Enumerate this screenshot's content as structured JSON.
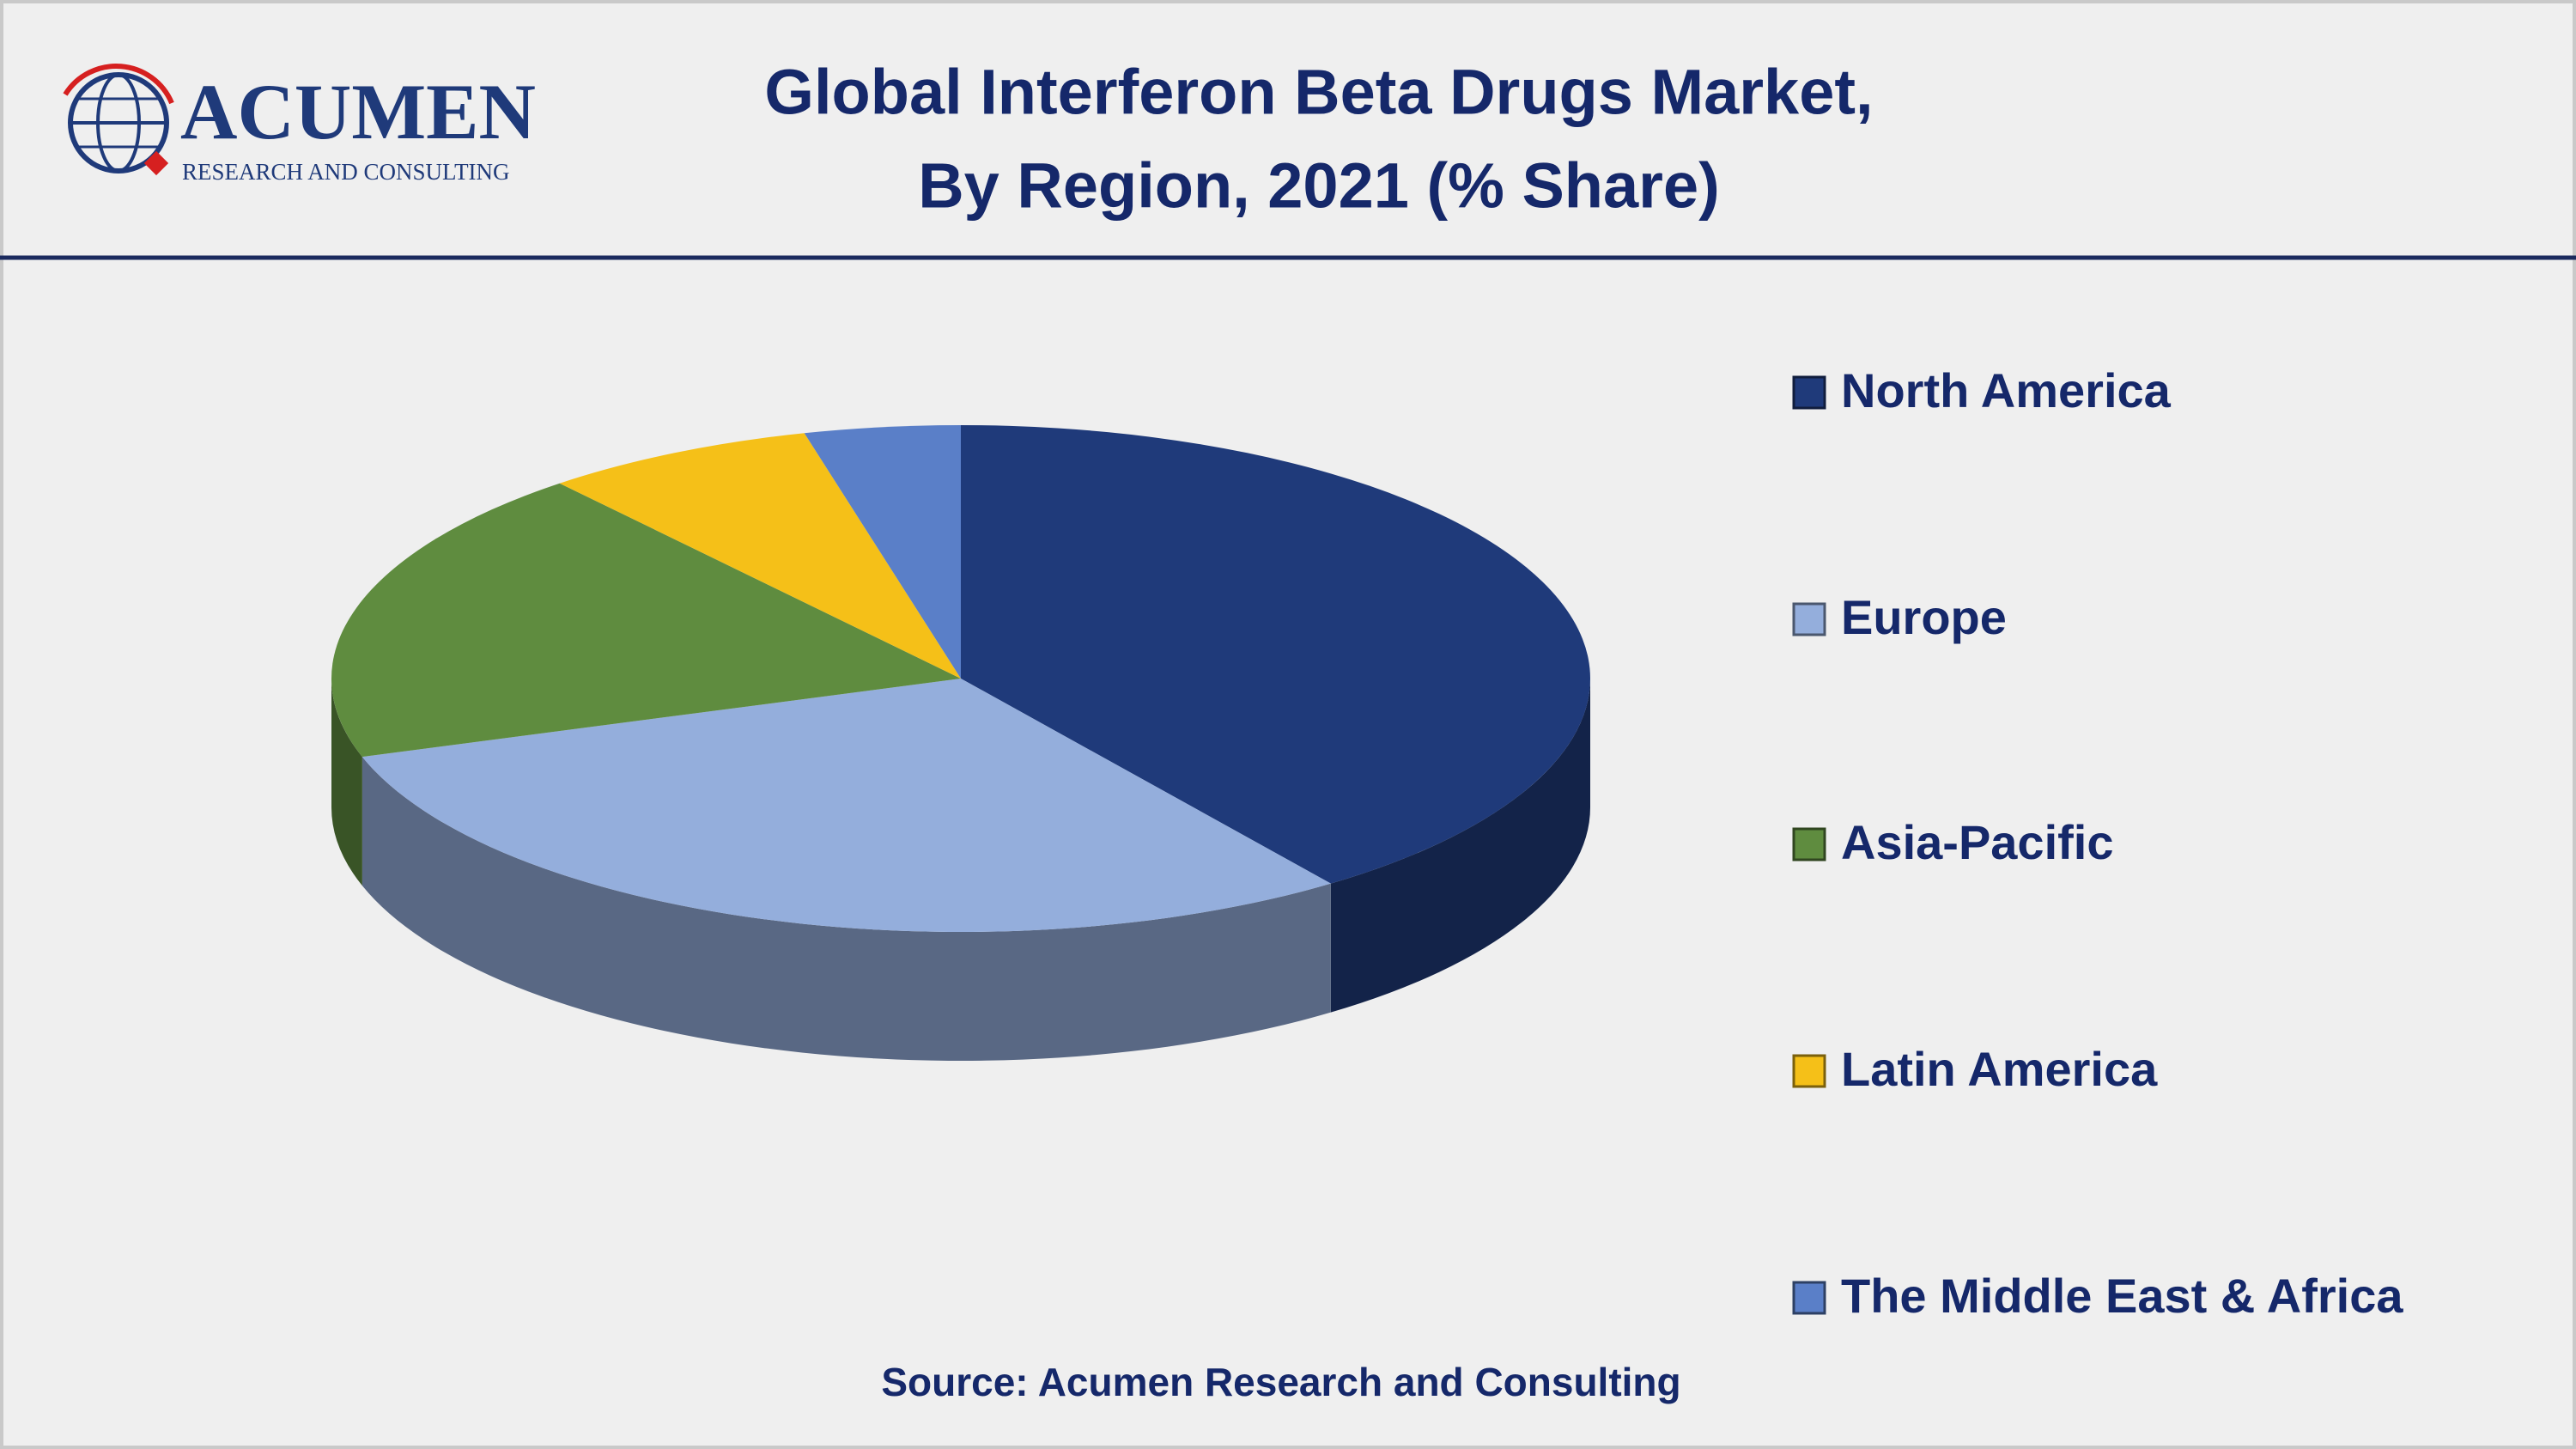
{
  "logo": {
    "name": "ACUMEN",
    "tagline": "RESEARCH AND CONSULTING"
  },
  "chart_data": {
    "type": "pie",
    "title": [
      "Global Interferon Beta Drugs Market,",
      "By Region, 2021 (% Share)"
    ],
    "categories": [
      "North America",
      "Europe",
      "Asia-Pacific",
      "Latin America",
      "The Middle East & Africa"
    ],
    "values": [
      40,
      30,
      19,
      7,
      4
    ],
    "colors": [
      "#1f3a7a",
      "#94aedc",
      "#5f8c3f",
      "#f5c018",
      "#5a7fc8"
    ],
    "legend": "right",
    "source": "Source: Acumen Research and Consulting"
  }
}
